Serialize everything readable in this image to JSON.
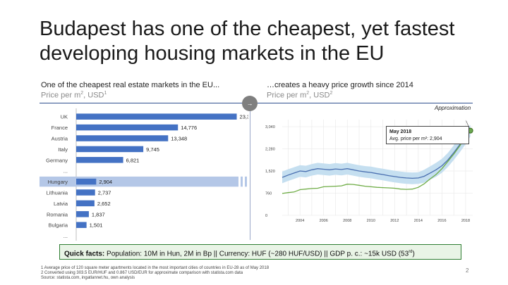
{
  "title": {
    "line1": "Budapest has one of the cheapest, yet fastest",
    "line2": "developing housing markets in the EU"
  },
  "left_panel": {
    "heading": "One of the cheapest real estate markets in the EU...",
    "subtitle": "Price per m",
    "subtitle_unit": ", USD",
    "footnote_mark": "1"
  },
  "right_panel": {
    "heading": "…creates a heavy price growth since 2014",
    "subtitle": "Price per m",
    "subtitle_unit": ", USD",
    "footnote_mark": "2",
    "approximation": "Approximation",
    "callout_title": "May 2018",
    "callout_text": "Avg. price per m²: 2,904"
  },
  "divider_icon": "arrow-right-icon",
  "colors": {
    "bar": "#4472c4",
    "highlight": "#b4c7e7",
    "series_budapest": "#4a6fb0",
    "band": "#c5dff0",
    "series_green": "#70ad47",
    "quick_border": "#2e7d32",
    "quick_bg": "#e9f4e6"
  },
  "chart_data": [
    {
      "type": "bar",
      "orientation": "horizontal",
      "categories": [
        "UK",
        "France",
        "Austria",
        "Italy",
        "Germany",
        "...",
        "Hungary",
        "Lithuania",
        "Latvia",
        "Romania",
        "Bulgaria",
        "..."
      ],
      "values": [
        23314,
        14776,
        13348,
        9745,
        6821,
        null,
        2904,
        2737,
        2652,
        1837,
        1501,
        null
      ],
      "value_labels": [
        "23,314",
        "14,776",
        "13,348",
        "9,745",
        "6,821",
        "",
        "2,904",
        "2,737",
        "2,652",
        "1,837",
        "1,501",
        ""
      ],
      "highlight": "Hungary",
      "xlim": [
        0,
        25000
      ]
    },
    {
      "type": "line",
      "x_range": [
        2002.5,
        2018.6
      ],
      "xticks": [
        2004,
        2006,
        2008,
        2010,
        2012,
        2014,
        2016,
        2018
      ],
      "yticks": [
        0,
        760,
        1520,
        2280,
        3040
      ],
      "ytick_labels": [
        "0",
        "760",
        "1,520",
        "2,280",
        "3,040"
      ],
      "ylim": [
        0,
        3040
      ],
      "grid": true,
      "series": [
        {
          "x": [
            2002.5,
            2003,
            2003.5,
            2004,
            2004.5,
            2005,
            2005.5,
            2006,
            2006.5,
            2007,
            2007.5,
            2008,
            2008.5,
            2009,
            2009.5,
            2010,
            2010.5,
            2011,
            2011.5,
            2012,
            2012.5,
            2013,
            2013.5,
            2014,
            2014.5,
            2015,
            2015.5,
            2016,
            2016.5,
            2017,
            2017.5,
            2018,
            2018.4
          ],
          "y": [
            1300,
            1380,
            1450,
            1520,
            1500,
            1560,
            1600,
            1580,
            1560,
            1590,
            1570,
            1600,
            1560,
            1520,
            1490,
            1470,
            1430,
            1400,
            1360,
            1330,
            1300,
            1280,
            1270,
            1280,
            1340,
            1450,
            1560,
            1700,
            1900,
            2150,
            2420,
            2700,
            2904
          ]
        },
        {
          "x": [
            2002.5,
            2003,
            2003.5,
            2004,
            2004.5,
            2005,
            2005.5,
            2006,
            2006.5,
            2007,
            2007.5,
            2008,
            2008.5,
            2009,
            2009.5,
            2010,
            2010.5,
            2011,
            2011.5,
            2012,
            2012.5,
            2013,
            2013.5,
            2014,
            2014.5,
            2015,
            2015.5,
            2016,
            2016.5,
            2017,
            2017.5,
            2018,
            2018.4
          ],
          "y": [
            750,
            780,
            800,
            880,
            900,
            920,
            930,
            980,
            990,
            1000,
            1010,
            1070,
            1060,
            1030,
            1000,
            980,
            960,
            950,
            940,
            930,
            900,
            890,
            900,
            960,
            1080,
            1250,
            1400,
            1600,
            1850,
            2100,
            2380,
            2700,
            2904
          ]
        }
      ],
      "band": {
        "upper": [
          1500,
          1580,
          1650,
          1720,
          1700,
          1760,
          1800,
          1780,
          1760,
          1790,
          1770,
          1800,
          1760,
          1720,
          1690,
          1670,
          1630,
          1600,
          1560,
          1530,
          1500,
          1480,
          1470,
          1480,
          1560,
          1680,
          1800,
          1940,
          2140,
          2400,
          2680,
          2960,
          3100
        ],
        "lower": [
          1100,
          1180,
          1250,
          1320,
          1300,
          1360,
          1400,
          1380,
          1360,
          1390,
          1370,
          1400,
          1360,
          1320,
          1290,
          1270,
          1230,
          1200,
          1160,
          1130,
          1100,
          1080,
          1070,
          1080,
          1120,
          1220,
          1320,
          1460,
          1660,
          1900,
          2160,
          2440,
          2700
        ]
      },
      "marker": {
        "x": 2018.4,
        "y": 2904
      }
    }
  ],
  "quick_facts": {
    "label": "Quick facts:",
    "text_a": " Population: 10M in Hun, 2M in Bp || Currency: HUF (~280 HUF/USD) || GDP p. c.: ~15k USD (53",
    "sup": "rd",
    "text_b": ")"
  },
  "footnotes": {
    "line1": "1 Average price of 120 square meter apartments located in the most important cities of countries in EU-28 as of May 2018",
    "line2": "2 Converted using 303.5 EUR/HUF and 0.867 USD/EUR for approximate comparison with statista.com data",
    "line3": "Source: statista.com, ingatlannet.hu, own analysis"
  },
  "page_number": "2"
}
